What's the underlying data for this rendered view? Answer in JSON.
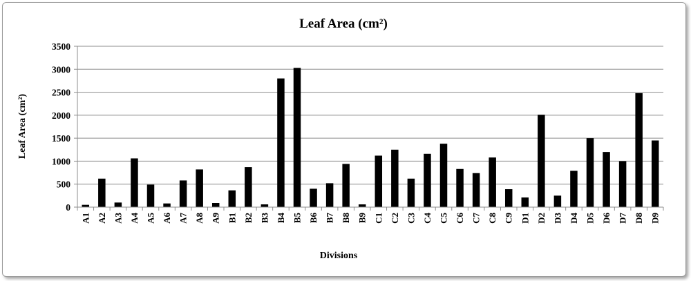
{
  "chart_data": {
    "type": "bar",
    "title": "Leaf  Area (cm²)",
    "xlabel": "Divisions",
    "ylabel": "Leaf Area (cm²)",
    "ylim": [
      0,
      3500
    ],
    "yticks": [
      0,
      500,
      1000,
      1500,
      2000,
      2500,
      3000,
      3500
    ],
    "grid": true,
    "legend": "none",
    "bar_color": "#000000",
    "grid_color": "#8c8c8c",
    "categories": [
      "A1",
      "A2",
      "A3",
      "A4",
      "A5",
      "A6",
      "A7",
      "A8",
      "A9",
      "B1",
      "B2",
      "B3",
      "B4",
      "B5",
      "B6",
      "B7",
      "B8",
      "B9",
      "C1",
      "C2",
      "C3",
      "C4",
      "C5",
      "C6",
      "C7",
      "C8",
      "C9",
      "D1",
      "D2",
      "D3",
      "D4",
      "D5",
      "D6",
      "D7",
      "D8",
      "D9"
    ],
    "values": [
      50,
      620,
      100,
      1060,
      490,
      80,
      580,
      820,
      90,
      365,
      870,
      60,
      2800,
      3030,
      400,
      520,
      940,
      60,
      1120,
      1250,
      620,
      1160,
      1380,
      830,
      740,
      1080,
      390,
      210,
      2010,
      250,
      790,
      1500,
      1200,
      1000,
      2480,
      1450
    ]
  }
}
